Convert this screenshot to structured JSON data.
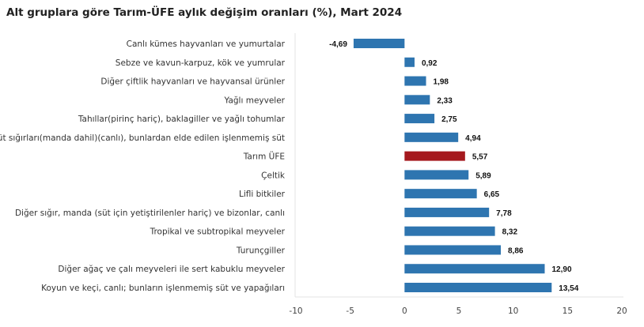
{
  "chart_data": {
    "type": "bar",
    "orientation": "horizontal",
    "title": "Alt gruplara göre Tarım-ÜFE aylık değişim oranları (%), Mart 2024",
    "categories": [
      "Canlı kümes hayvanları ve yumurtalar",
      "Sebze ve kavun-karpuz, kök ve yumrular",
      "Diğer çiftlik hayvanları ve hayvansal ürünler",
      "Yağlı meyveler",
      "Tahıllar(pirinç hariç), baklagiller ve yağlı tohumlar",
      "Süt sığırları(manda dahil)(canlı), bunlardan elde edilen işlenmemiş süt",
      "Tarım ÜFE",
      "Çeltik",
      "Lifli bitkiler",
      "Diğer sığır, manda (süt için yetiştirilenler hariç) ve bizonlar, canlı",
      "Tropikal ve subtropikal meyveler",
      "Turunçgiller",
      "Diğer ağaç ve çalı meyveleri ile sert kabuklu meyveler",
      "Koyun ve keçi, canlı; bunların işlenmemiş süt ve yapağıları"
    ],
    "values": [
      -4.69,
      0.92,
      1.98,
      2.33,
      2.75,
      4.94,
      5.57,
      5.89,
      6.65,
      7.78,
      8.32,
      8.86,
      12.9,
      13.54
    ],
    "data_labels": [
      "-4,69",
      "0,92",
      "1,98",
      "2,33",
      "2,75",
      "4,94",
      "5,57",
      "5,89",
      "6,65",
      "7,78",
      "8,32",
      "8,86",
      "12,90",
      "13,54"
    ],
    "xlim": [
      -10,
      20
    ],
    "xticks": [
      "-10",
      "-5",
      "0",
      "5",
      "10",
      "15",
      "20"
    ],
    "xtick_values": [
      -10,
      -5,
      0,
      5,
      10,
      15,
      20
    ],
    "highlight_category": "Tarım ÜFE",
    "colors": {
      "bar": "#2e75b0",
      "highlight": "#a5191e"
    },
    "grid": false,
    "legend": "none"
  }
}
